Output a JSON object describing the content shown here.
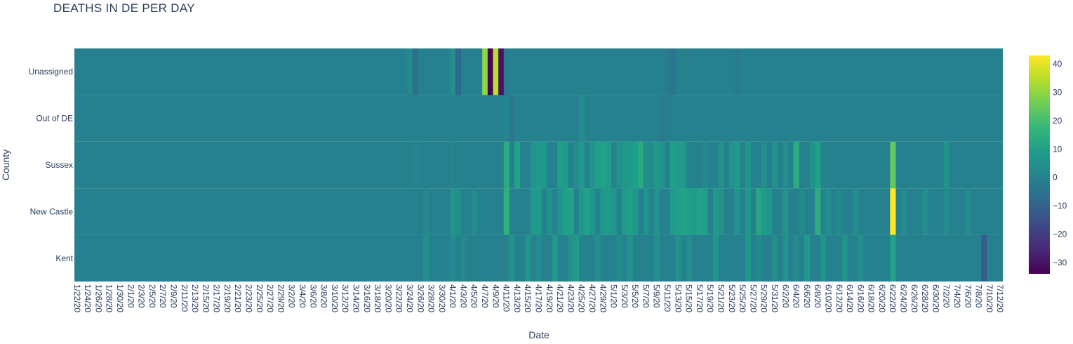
{
  "chart_data": {
    "type": "heatmap",
    "title": "DEATHS IN DE PER DAY",
    "xlabel": "Date",
    "ylabel": "County",
    "start_date": "1/22/20",
    "end_date": "7/12/20",
    "x_tick_labels": [
      "1/22/20",
      "1/24/20",
      "1/26/20",
      "1/28/20",
      "1/30/20",
      "2/1/20",
      "2/3/20",
      "2/5/20",
      "2/7/20",
      "2/9/20",
      "2/11/20",
      "2/13/20",
      "2/15/20",
      "2/17/20",
      "2/19/20",
      "2/21/20",
      "2/23/20",
      "2/25/20",
      "2/27/20",
      "2/29/20",
      "3/2/20",
      "3/4/20",
      "3/6/20",
      "3/8/20",
      "3/10/20",
      "3/12/20",
      "3/14/20",
      "3/16/20",
      "3/18/20",
      "3/20/20",
      "3/22/20",
      "3/24/20",
      "3/26/20",
      "3/28/20",
      "3/30/20",
      "4/1/20",
      "4/3/20",
      "4/5/20",
      "4/7/20",
      "4/9/20",
      "4/11/20",
      "4/13/20",
      "4/15/20",
      "4/17/20",
      "4/19/20",
      "4/21/20",
      "4/23/20",
      "4/25/20",
      "4/27/20",
      "4/29/20",
      "5/1/20",
      "5/3/20",
      "5/5/20",
      "5/7/20",
      "5/9/20",
      "5/11/20",
      "5/13/20",
      "5/15/20",
      "5/17/20",
      "5/19/20",
      "5/21/20",
      "5/23/20",
      "5/25/20",
      "5/27/20",
      "5/29/20",
      "5/31/20",
      "6/2/20",
      "6/4/20",
      "6/6/20",
      "6/8/20",
      "6/10/20",
      "6/12/20",
      "6/14/20",
      "6/16/20",
      "6/18/20",
      "6/20/20",
      "6/22/20",
      "6/24/20",
      "6/26/20",
      "6/28/20",
      "6/30/20",
      "7/2/20",
      "7/4/20",
      "7/6/20",
      "7/8/20",
      "7/10/20",
      "7/12/20"
    ],
    "y_categories": [
      "Unassigned",
      "Out of DE",
      "Sussex",
      "New Castle",
      "Kent"
    ],
    "colorscale": "viridis",
    "zmin": -34,
    "zmax": 43,
    "colorbar_ticks": [
      40,
      30,
      20,
      10,
      0,
      -10,
      -20,
      -30
    ],
    "values_by_date": {
      "Unassigned": {
        "3/24/20": 3,
        "3/25/20": -6,
        "4/1/20": 4,
        "4/2/20": -8,
        "4/7/20": 30,
        "4/8/20": -33,
        "4/9/20": 35,
        "4/10/20": -30,
        "4/11/20": -2,
        "5/11/20": -2,
        "5/12/20": -4,
        "5/24/20": -2
      },
      "Out of DE": {
        "4/11/20": 1,
        "4/12/20": -3,
        "4/25/20": 3,
        "5/10/20": -2
      },
      "Sussex": {
        "3/25/20": 1,
        "4/1/20": 1,
        "4/11/20": 14,
        "4/13/20": 10,
        "4/16/20": 6,
        "4/17/20": 8,
        "4/18/20": 7,
        "4/21/20": 9,
        "4/22/20": 8,
        "4/24/20": 4,
        "4/25/20": 7,
        "4/27/20": 6,
        "4/28/20": 9,
        "4/29/20": 10,
        "4/30/20": 8,
        "5/2/20": 5,
        "5/3/20": 7,
        "5/4/20": 8,
        "5/5/20": 9,
        "5/6/20": 13,
        "5/7/20": 4,
        "5/8/20": 3,
        "5/9/20": 7,
        "5/10/20": 6,
        "5/12/20": 9,
        "5/13/20": 8,
        "5/14/20": 7,
        "5/18/20": 3,
        "5/21/20": 5,
        "5/23/20": 5,
        "5/24/20": 8,
        "5/26/20": 6,
        "5/29/20": 4,
        "5/31/20": 5,
        "6/2/20": 4,
        "6/4/20": 14,
        "6/7/20": 5,
        "6/8/20": 9,
        "6/22/20": 24,
        "7/2/20": 5
      },
      "New Castle": {
        "3/27/20": 2,
        "4/1/20": 6,
        "4/2/20": 4,
        "4/5/20": 3,
        "4/11/20": 15,
        "4/16/20": 7,
        "4/17/20": 8,
        "4/19/20": 5,
        "4/21/20": 6,
        "4/22/20": 9,
        "4/23/20": 10,
        "4/25/20": 7,
        "4/26/20": 10,
        "4/27/20": 6,
        "4/29/20": 7,
        "4/30/20": 8,
        "5/1/20": 6,
        "5/3/20": 8,
        "5/4/20": 9,
        "5/5/20": 7,
        "5/7/20": 6,
        "5/9/20": 5,
        "5/12/20": 8,
        "5/13/20": 9,
        "5/14/20": 10,
        "5/15/20": 9,
        "5/16/20": 8,
        "5/17/20": 10,
        "5/18/20": 9,
        "5/20/20": 7,
        "5/21/20": 5,
        "5/24/20": 6,
        "5/26/20": 7,
        "5/28/20": 12,
        "5/29/20": 7,
        "5/30/20": 6,
        "6/2/20": 5,
        "6/5/20": 3,
        "6/8/20": 14,
        "6/10/20": 4,
        "6/12/20": 3,
        "6/15/20": 4,
        "6/22/20": 43,
        "6/24/20": 3,
        "6/28/20": 4,
        "7/2/20": 3,
        "7/6/20": 3
      },
      "Kent": {
        "3/27/20": 4,
        "4/1/20": 3,
        "4/3/20": 2,
        "4/12/20": 5,
        "4/15/20": 6,
        "4/17/20": 3,
        "4/20/20": 7,
        "4/23/20": 5,
        "4/24/20": 8,
        "4/28/20": 4,
        "5/2/20": 3,
        "5/4/20": 5,
        "5/9/20": 4,
        "5/13/20": 5,
        "5/15/20": 4,
        "5/20/20": 6,
        "5/26/20": 7,
        "5/28/20": 3,
        "5/31/20": 4,
        "6/2/20": 5,
        "6/4/20": 3,
        "6/6/20": 7,
        "6/9/20": 6,
        "6/13/20": 5,
        "6/16/20": 4,
        "6/22/20": 10,
        "7/9/20": -12
      }
    }
  }
}
